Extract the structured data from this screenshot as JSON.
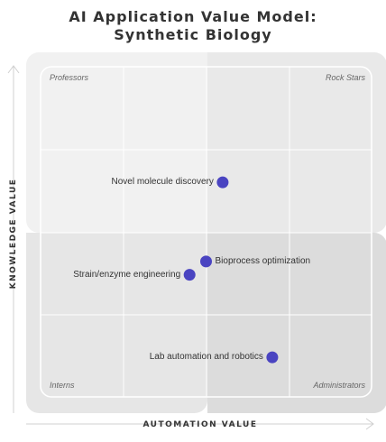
{
  "title": {
    "line1": "AI Application Value Model:",
    "line2": "Synthetic Biology"
  },
  "quadrants": {
    "top_left": "Professors",
    "top_right": "Rock Stars",
    "bottom_left": "Interns",
    "bottom_right": "Administrators"
  },
  "axes": {
    "x_label": "AUTOMATION VALUE",
    "y_label": "KNOWLEDGE VALUE"
  },
  "colors": {
    "point": "#4a44c1",
    "quadrant_top_left": "#f1f1f1",
    "quadrant_top_right": "#e9e9e9",
    "quadrant_bottom_left": "#e6e6e6",
    "quadrant_bottom_right": "#dcdcdc",
    "grid": "#ffffff",
    "arrow": "#d0d0d0"
  },
  "chart_data": {
    "type": "scatter",
    "x_range": [
      0,
      1
    ],
    "y_range": [
      0,
      1
    ],
    "points": [
      {
        "label": "Novel molecule discovery",
        "x": 0.55,
        "y": 0.65
      },
      {
        "label": "Bioprocess optimization",
        "x": 0.5,
        "y": 0.41
      },
      {
        "label": "Strain/enzyme engineering",
        "x": 0.45,
        "y": 0.37
      },
      {
        "label": "Lab automation and robotics",
        "x": 0.7,
        "y": 0.12
      }
    ]
  }
}
